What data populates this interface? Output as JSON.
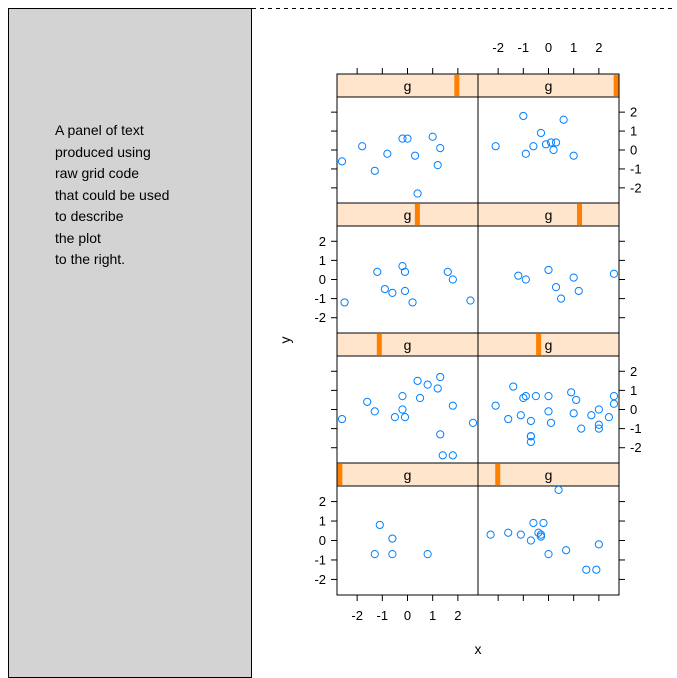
{
  "description_panel": {
    "lines": [
      "A panel of text",
      "produced using",
      "raw grid code",
      "that could be used",
      "to describe",
      "the plot",
      "to the right."
    ]
  },
  "colors": {
    "panel_background": "#d3d3d3",
    "strip_background": "#ffe5cc",
    "strip_indicator": "#ff7f00",
    "points": "#0080ff"
  },
  "chart_data": {
    "type": "scatter",
    "layout": "lattice conditioned plot, 2 columns x 4 rows, conditioning variable g",
    "xlabel": "x",
    "ylabel": "y",
    "xlim": [
      -2.8,
      2.8
    ],
    "ylim": [
      -2.8,
      2.8
    ],
    "x_ticks": [
      "-2",
      "-1",
      "0",
      "1",
      "2"
    ],
    "y_ticks": [
      "-2",
      "-1",
      "0",
      "1",
      "2"
    ],
    "strip_label": "g",
    "panels": [
      {
        "row": 1,
        "col": 1,
        "g_fraction": 0.02,
        "points": [
          [
            -1.3,
            -0.7
          ],
          [
            -1.1,
            0.8
          ],
          [
            -0.6,
            0.1
          ],
          [
            -0.6,
            -0.7
          ],
          [
            0.8,
            -0.7
          ]
        ]
      },
      {
        "row": 1,
        "col": 2,
        "g_fraction": 0.14,
        "points": [
          [
            -2.3,
            0.3
          ],
          [
            -1.6,
            0.4
          ],
          [
            -1.1,
            0.3
          ],
          [
            -0.7,
            0.0
          ],
          [
            -0.6,
            0.9
          ],
          [
            -0.4,
            0.4
          ],
          [
            -0.3,
            0.2
          ],
          [
            -0.2,
            0.9
          ],
          [
            -0.3,
            0.3
          ],
          [
            0.0,
            -0.7
          ],
          [
            0.4,
            2.6
          ],
          [
            0.7,
            -0.5
          ],
          [
            1.5,
            -1.5
          ],
          [
            2.0,
            -0.2
          ],
          [
            1.9,
            -1.5
          ]
        ]
      },
      {
        "row": 2,
        "col": 1,
        "g_fraction": 0.3,
        "points": [
          [
            -2.6,
            -0.5
          ],
          [
            -1.6,
            0.4
          ],
          [
            -1.3,
            -0.1
          ],
          [
            -0.5,
            -0.4
          ],
          [
            -0.2,
            0.7
          ],
          [
            -0.2,
            0.0
          ],
          [
            -0.1,
            -0.4
          ],
          [
            0.4,
            1.5
          ],
          [
            0.5,
            0.6
          ],
          [
            0.8,
            1.3
          ],
          [
            1.2,
            1.1
          ],
          [
            1.3,
            1.7
          ],
          [
            1.3,
            -1.3
          ],
          [
            1.4,
            -2.4
          ],
          [
            1.8,
            -2.4
          ],
          [
            1.8,
            0.2
          ],
          [
            2.6,
            -0.7
          ]
        ]
      },
      {
        "row": 2,
        "col": 2,
        "g_fraction": 0.43,
        "points": [
          [
            -2.1,
            0.2
          ],
          [
            -1.6,
            -0.5
          ],
          [
            -1.4,
            1.2
          ],
          [
            -1.1,
            -0.3
          ],
          [
            -1.0,
            0.6
          ],
          [
            -0.9,
            0.7
          ],
          [
            -0.7,
            -0.6
          ],
          [
            -0.7,
            -1.4
          ],
          [
            -0.5,
            0.7
          ],
          [
            -0.7,
            -1.7
          ],
          [
            -0.7,
            -1.4
          ],
          [
            0.0,
            0.7
          ],
          [
            0.0,
            -0.1
          ],
          [
            0.1,
            -0.7
          ],
          [
            0.9,
            0.9
          ],
          [
            1.0,
            -0.2
          ],
          [
            1.1,
            0.5
          ],
          [
            1.3,
            -1.0
          ],
          [
            1.7,
            -0.3
          ],
          [
            2.0,
            -0.8
          ],
          [
            2.0,
            -1.0
          ],
          [
            2.0,
            0.0
          ],
          [
            2.4,
            -0.4
          ],
          [
            2.6,
            0.3
          ],
          [
            2.6,
            0.7
          ]
        ]
      },
      {
        "row": 3,
        "col": 1,
        "g_fraction": 0.57,
        "points": [
          [
            -2.5,
            -1.2
          ],
          [
            -1.2,
            0.4
          ],
          [
            -0.9,
            -0.5
          ],
          [
            -0.6,
            -0.7
          ],
          [
            -0.2,
            0.7
          ],
          [
            -0.1,
            -0.6
          ],
          [
            -0.1,
            0.4
          ],
          [
            0.2,
            -1.2
          ],
          [
            1.6,
            0.4
          ],
          [
            1.8,
            0.0
          ],
          [
            2.5,
            -1.1
          ]
        ]
      },
      {
        "row": 3,
        "col": 2,
        "g_fraction": 0.72,
        "points": [
          [
            -1.2,
            0.2
          ],
          [
            -0.9,
            0.0
          ],
          [
            0.0,
            0.5
          ],
          [
            0.3,
            -0.4
          ],
          [
            0.5,
            -1.0
          ],
          [
            1.0,
            0.1
          ],
          [
            1.2,
            -0.6
          ],
          [
            2.6,
            0.3
          ]
        ]
      },
      {
        "row": 4,
        "col": 1,
        "g_fraction": 0.85,
        "points": [
          [
            -2.6,
            -0.6
          ],
          [
            -1.8,
            0.2
          ],
          [
            -1.3,
            -1.1
          ],
          [
            -0.8,
            -0.2
          ],
          [
            -0.2,
            0.6
          ],
          [
            0.0,
            0.6
          ],
          [
            0.3,
            -0.3
          ],
          [
            0.4,
            -2.3
          ],
          [
            1.0,
            0.7
          ],
          [
            1.2,
            -0.8
          ],
          [
            1.3,
            0.1
          ]
        ]
      },
      {
        "row": 4,
        "col": 2,
        "g_fraction": 0.98,
        "points": [
          [
            -2.1,
            0.2
          ],
          [
            -1.0,
            1.8
          ],
          [
            -0.9,
            -0.2
          ],
          [
            -0.6,
            0.2
          ],
          [
            -0.3,
            0.9
          ],
          [
            -0.1,
            0.3
          ],
          [
            0.1,
            0.4
          ],
          [
            0.2,
            0.0
          ],
          [
            0.3,
            0.4
          ],
          [
            0.6,
            1.6
          ],
          [
            1.0,
            -0.3
          ]
        ]
      }
    ]
  }
}
